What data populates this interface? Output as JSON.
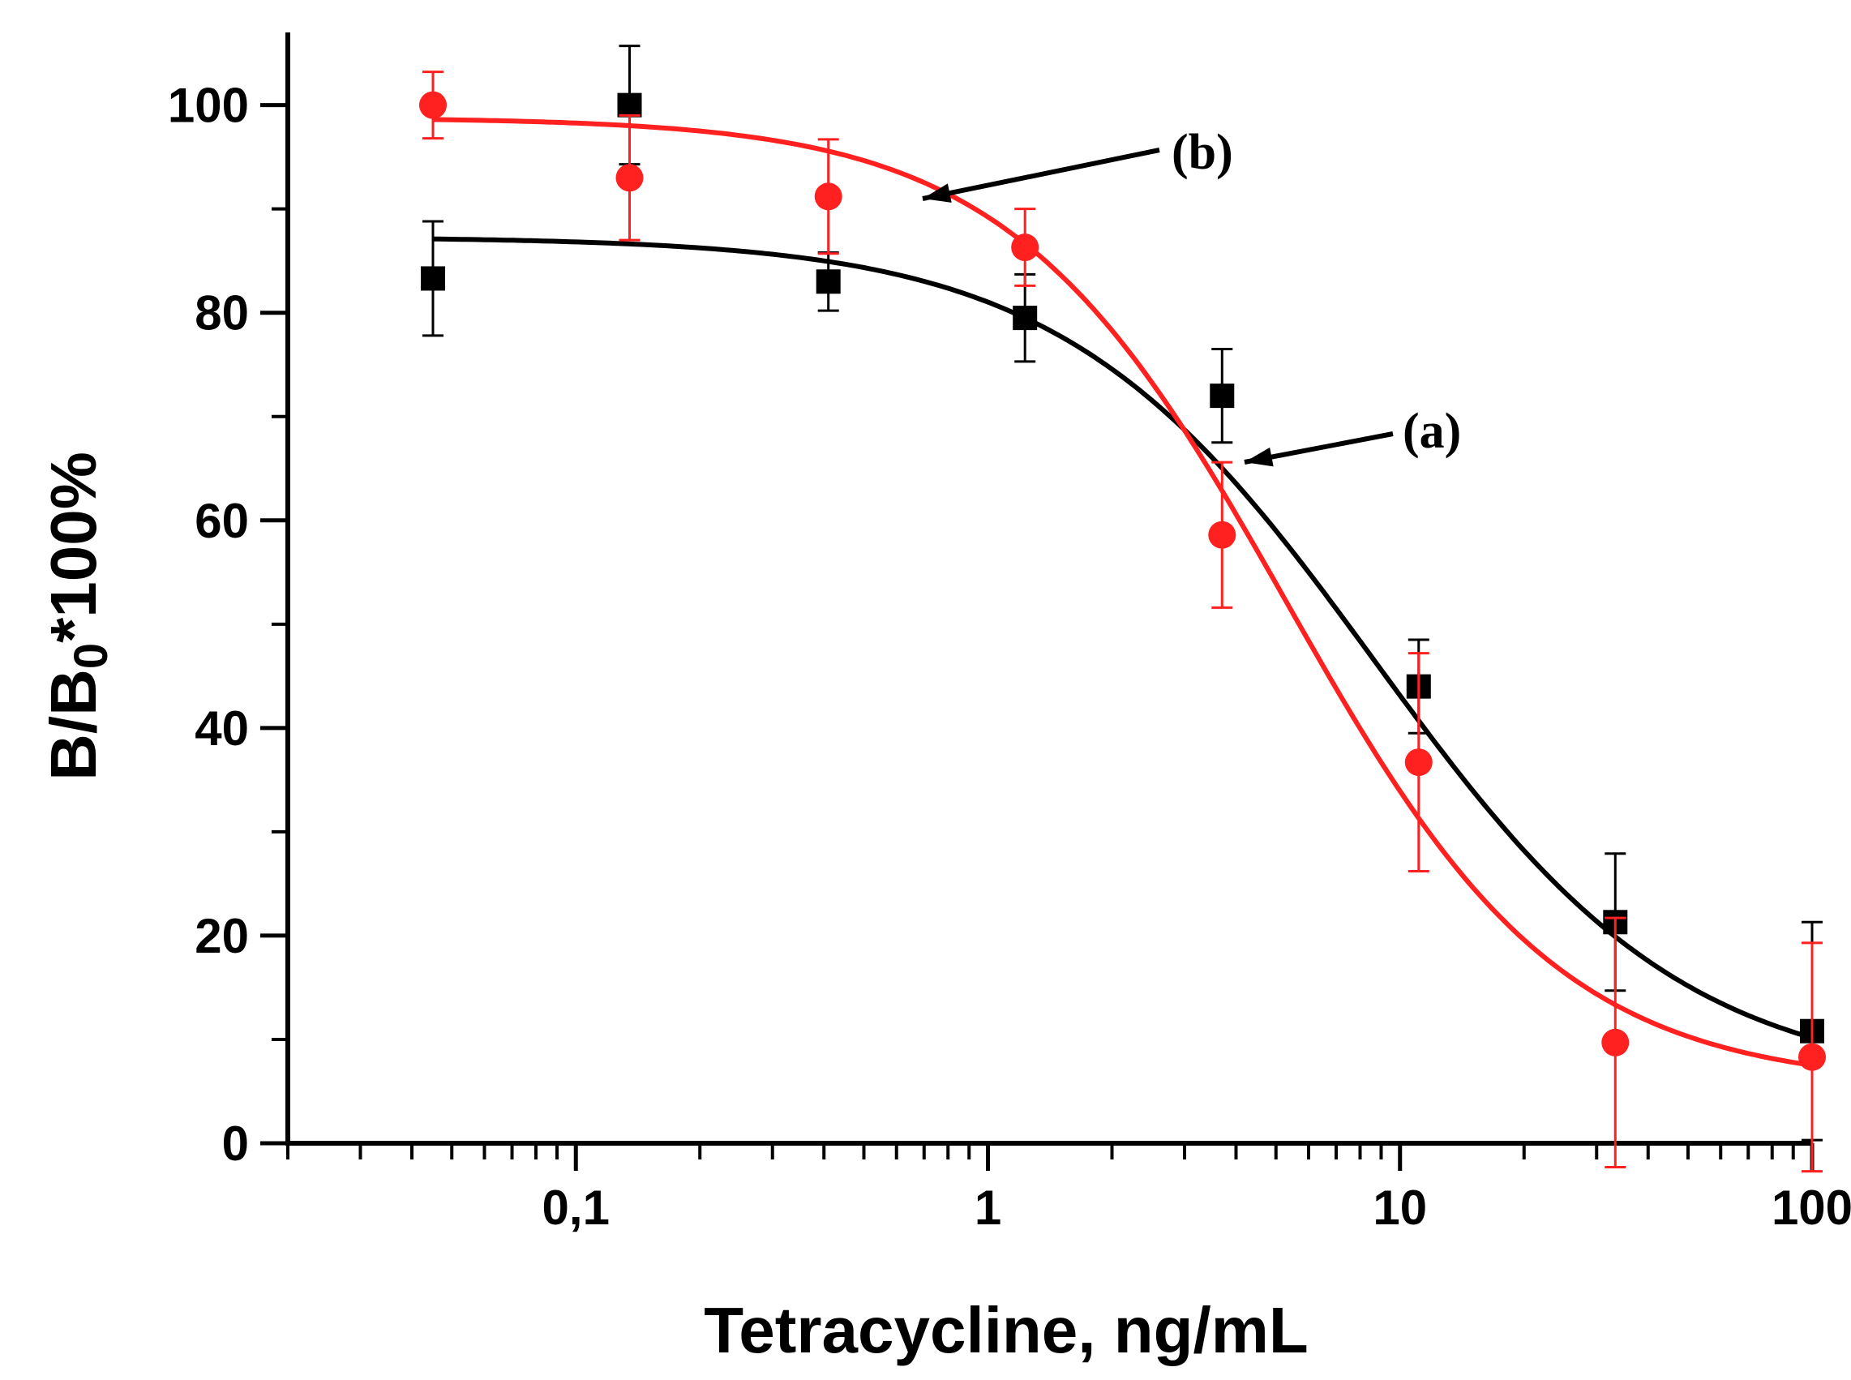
{
  "chart_data": {
    "type": "scatter",
    "title": "",
    "xlabel": "Tetracycline, ng/mL",
    "ylabel_parts": {
      "pre": "B/B",
      "sub": "0",
      "post": "*100%"
    },
    "xscale": "log",
    "xlim": [
      0.02,
      100
    ],
    "ylim": [
      0,
      107
    ],
    "x_ticks": [
      {
        "value": 0.1,
        "label": "0,1"
      },
      {
        "value": 1,
        "label": "1"
      },
      {
        "value": 10,
        "label": "10"
      },
      {
        "value": 100,
        "label": "100"
      }
    ],
    "y_ticks": [
      {
        "value": 0,
        "label": "0"
      },
      {
        "value": 20,
        "label": "20"
      },
      {
        "value": 40,
        "label": "40"
      },
      {
        "value": 60,
        "label": "60"
      },
      {
        "value": 80,
        "label": "80"
      },
      {
        "value": 100,
        "label": "100"
      }
    ],
    "series": [
      {
        "name": "(a)",
        "marker": "square",
        "color": "#000000",
        "x": [
          0.045,
          0.135,
          0.41,
          1.23,
          3.7,
          11.1,
          33.3,
          100
        ],
        "y": [
          83.3,
          100,
          83,
          79.5,
          72,
          44,
          21.3,
          10.8
        ],
        "err": [
          5.5,
          5.7,
          2.8,
          4.2,
          4.5,
          4.5,
          6.6,
          10.5
        ],
        "fit": {
          "top": 87.3,
          "bottom": 5.5,
          "ec50": 8.7,
          "hill": 1.15
        }
      },
      {
        "name": "(b)",
        "marker": "circle",
        "color": "#ff2020",
        "x": [
          0.045,
          0.135,
          0.41,
          1.23,
          3.7,
          11.1,
          33.3,
          100
        ],
        "y": [
          100,
          93,
          91.2,
          86.3,
          58.6,
          36.7,
          9.7,
          8.3
        ],
        "err": [
          3.2,
          6.0,
          5.5,
          3.7,
          7.0,
          10.5,
          12.0,
          11.0
        ],
        "fit": {
          "top": 98.8,
          "bottom": 5.5,
          "ec50": 5.3,
          "hill": 1.3
        }
      }
    ],
    "annotations": [
      {
        "text": "(b)",
        "series": "(b)"
      },
      {
        "text": "(a)",
        "series": "(a)"
      }
    ]
  }
}
